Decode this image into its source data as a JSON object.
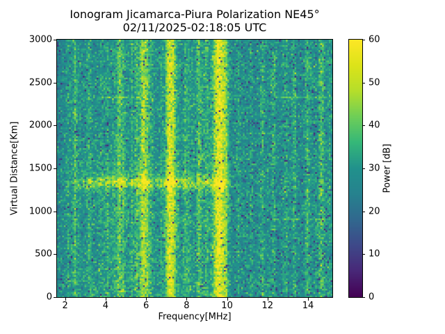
{
  "figure": {
    "title_line1": "Ionogram Jicamarca-Piura Polarization NE45°",
    "title_line2": "02/11/2025-02:18:05 UTC",
    "background_color": "#ffffff",
    "text_color": "#000000"
  },
  "chart_data": {
    "type": "heatmap",
    "title": "Ionogram Jicamarca-Piura Polarization NE45°",
    "subtitle": "02/11/2025-02:18:05 UTC",
    "xlabel": "Frequency[MHz]",
    "ylabel": "Virtual Distance[Km]",
    "colorbar_label": "Power [dB]",
    "xlim": [
      1.6,
      15.2
    ],
    "ylim": [
      0,
      3000
    ],
    "clim": [
      0,
      60
    ],
    "xticks": [
      2,
      4,
      6,
      8,
      10,
      12,
      14
    ],
    "yticks": [
      0,
      500,
      1000,
      1500,
      2000,
      2500,
      3000
    ],
    "colorbar_ticks": [
      0,
      10,
      20,
      30,
      40,
      50,
      60
    ],
    "colormap": "viridis",
    "colormap_stops": [
      "#440154",
      "#482878",
      "#3e4989",
      "#31688e",
      "#26828e",
      "#21918c",
      "#35b779",
      "#6ece58",
      "#b5de2b",
      "#dce319",
      "#fde725"
    ],
    "grid": {
      "ncols": 160,
      "nrows": 150,
      "seed": 1337
    },
    "noise": {
      "mean_db": 30,
      "std_db": 4.5,
      "row_wobble_db": 1.6,
      "col_wobble_db": 3,
      "dark_speckle_prob": 0.025,
      "dark_speckle_prob_high_freq": 0.06,
      "high_freq_start_mhz": 10.3,
      "dark_speckle_db": [
        7,
        20
      ],
      "bright_speckle_prob": 0.008,
      "bright_speckle_db": 9,
      "low_freq_dark_limit_mhz": 3.6,
      "low_freq_dark_db": 2.5
    },
    "interference_lines": [
      {
        "freq_mhz": 2.15,
        "boost_db": 5,
        "sigma_mhz": 0.06
      },
      {
        "freq_mhz": 2.5,
        "boost_db": 7,
        "sigma_mhz": 0.06
      },
      {
        "freq_mhz": 3.22,
        "boost_db": 5,
        "sigma_mhz": 0.06
      },
      {
        "freq_mhz": 4.1,
        "boost_db": 4,
        "sigma_mhz": 0.06
      },
      {
        "freq_mhz": 4.67,
        "boost_db": 9,
        "sigma_mhz": 0.08
      },
      {
        "freq_mhz": 4.88,
        "boost_db": 6,
        "sigma_mhz": 0.06
      },
      {
        "freq_mhz": 5.3,
        "boost_db": 5,
        "sigma_mhz": 0.06
      },
      {
        "freq_mhz": 5.55,
        "boost_db": 5,
        "sigma_mhz": 0.06
      },
      {
        "freq_mhz": 5.86,
        "boost_db": 13,
        "sigma_mhz": 0.1
      },
      {
        "freq_mhz": 6.06,
        "boost_db": 9,
        "sigma_mhz": 0.08
      },
      {
        "freq_mhz": 6.3,
        "boost_db": 5,
        "sigma_mhz": 0.06
      },
      {
        "freq_mhz": 6.75,
        "boost_db": 4,
        "sigma_mhz": 0.06
      },
      {
        "freq_mhz": 7.16,
        "boost_db": 21,
        "sigma_mhz": 0.12
      },
      {
        "freq_mhz": 7.36,
        "boost_db": 12,
        "sigma_mhz": 0.08
      },
      {
        "freq_mhz": 7.95,
        "boost_db": 5,
        "sigma_mhz": 0.06
      },
      {
        "freq_mhz": 8.6,
        "boost_db": 9,
        "sigma_mhz": 0.07
      },
      {
        "freq_mhz": 9.0,
        "boost_db": 5,
        "sigma_mhz": 0.06
      },
      {
        "freq_mhz": 9.45,
        "boost_db": 11,
        "sigma_mhz": 0.12
      },
      {
        "freq_mhz": 9.69,
        "boost_db": 23,
        "sigma_mhz": 0.14
      },
      {
        "freq_mhz": 9.95,
        "boost_db": 7,
        "sigma_mhz": 0.08
      },
      {
        "freq_mhz": 10.55,
        "boost_db": 4,
        "sigma_mhz": 0.06
      },
      {
        "freq_mhz": 11.2,
        "boost_db": 4,
        "sigma_mhz": 0.06
      },
      {
        "freq_mhz": 11.75,
        "boost_db": 7,
        "sigma_mhz": 0.07
      },
      {
        "freq_mhz": 12.3,
        "boost_db": 6,
        "sigma_mhz": 0.07
      },
      {
        "freq_mhz": 12.9,
        "boost_db": 4,
        "sigma_mhz": 0.06
      },
      {
        "freq_mhz": 13.35,
        "boost_db": 5,
        "sigma_mhz": 0.06
      },
      {
        "freq_mhz": 13.97,
        "boost_db": 7,
        "sigma_mhz": 0.07
      },
      {
        "freq_mhz": 14.65,
        "boost_db": 9,
        "sigma_mhz": 0.08
      },
      {
        "freq_mhz": 15.05,
        "boost_db": 5,
        "sigma_mhz": 0.06
      }
    ],
    "broad_washes": [
      {
        "f0": 2.3,
        "f1": 2.75,
        "boost_db": 2
      },
      {
        "f0": 4.3,
        "f1": 5.15,
        "boost_db": 2
      },
      {
        "f0": 5.4,
        "f1": 6.3,
        "boost_db": 3
      },
      {
        "f0": 6.95,
        "f1": 7.6,
        "boost_db": 3
      },
      {
        "f0": 9.2,
        "f1": 10.05,
        "boost_db": 4
      },
      {
        "f0": 13.8,
        "f1": 14.95,
        "boost_db": 2
      }
    ],
    "diffuse_scatter": {
      "f0": 3.2,
      "f1": 8.2,
      "km_max": 1600,
      "boost_db": 1.5
    },
    "echo_trace": {
      "center_km": 1335,
      "sigma_km": 50,
      "f_start_mhz": 2.2,
      "f_end_mhz": 10.45,
      "boost_db": 13,
      "edge_taper_mhz": 0.8
    },
    "horizontal_lines": [
      {
        "km": 2330,
        "boost_db": 7,
        "segments": [
          [
            3.1,
            5.6
          ],
          [
            12.35,
            15.2
          ]
        ]
      },
      {
        "km": 910,
        "boost_db": 6,
        "segments": [
          [
            12.1,
            15.2
          ]
        ]
      }
    ]
  }
}
